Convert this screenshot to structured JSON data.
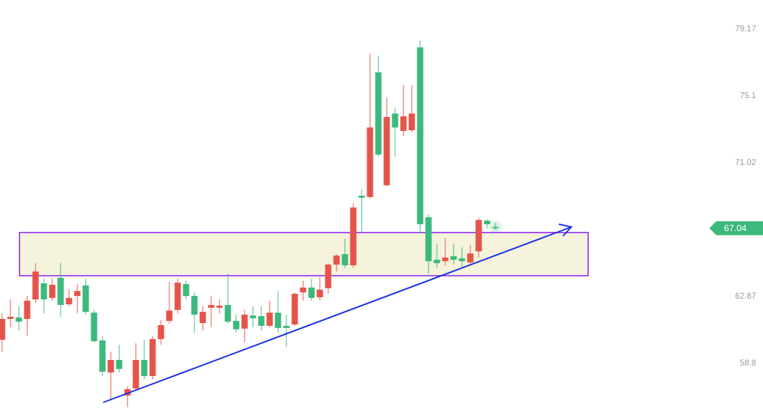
{
  "chart_data": {
    "type": "candlestick",
    "up_color": "#e5544a",
    "down_color": "#3cb97c",
    "grid": false,
    "ylim": [
      56.08,
      80.95
    ],
    "yticks": [
      79.17,
      75.1,
      71.02,
      62.87,
      58.8
    ],
    "last_price": 67.04,
    "last_price_color": "#3cb97c",
    "open": [
      60.24,
      61.51,
      61.6,
      61.51,
      62.7,
      63.68,
      62.79,
      64.02,
      62.4,
      62.91,
      63.55,
      61.89,
      60.2,
      58.24,
      59.01,
      56.84,
      57.27,
      59.01,
      58.03,
      60.28,
      61.39,
      62.06,
      63.63,
      62.91,
      61.26,
      62.19,
      62.19,
      62.36,
      61.39,
      60.92,
      61.72,
      61.68,
      61.09,
      61.89,
      61.09,
      61.17,
      63.13,
      63.42,
      62.83,
      63.38,
      64.82,
      65.46,
      64.78,
      69.02,
      68.94,
      76.54,
      69.66,
      74.03,
      72.97,
      73.01,
      78.06,
      67.71,
      65.12,
      65.03,
      65.33,
      65.2,
      64.95,
      65.63,
      67.5,
      67.11
    ],
    "high": [
      61.85,
      62.7,
      62.28,
      62.91,
      64.91,
      63.97,
      63.97,
      64.95,
      63.34,
      63.63,
      63.97,
      62.06,
      60.45,
      59.52,
      59.94,
      57.4,
      60.03,
      60.24,
      60.45,
      61.43,
      63.76,
      63.97,
      63.85,
      63.13,
      62.28,
      62.91,
      62.7,
      64.27,
      61.77,
      62.06,
      62.28,
      62.28,
      62.62,
      63.21,
      61.77,
      63.13,
      63.85,
      63.97,
      64.06,
      64.91,
      65.46,
      66.39,
      68.56,
      69.41,
      77.68,
      77.55,
      75.01,
      74.37,
      75.77,
      75.77,
      78.49,
      67.88,
      66.1,
      66.44,
      66.1,
      65.88,
      66.01,
      67.67,
      67.58,
      67.37
    ],
    "low": [
      59.52,
      61.0,
      60.79,
      60.49,
      62.49,
      61.85,
      62.62,
      61.64,
      62.28,
      61.85,
      61.77,
      60.07,
      58.03,
      56.55,
      58.24,
      56.12,
      57.18,
      57.82,
      57.82,
      59.94,
      61.22,
      61.85,
      62.7,
      60.66,
      60.79,
      61.0,
      61.85,
      61.22,
      60.66,
      60.07,
      61.0,
      60.79,
      61.0,
      60.66,
      59.82,
      61.09,
      62.62,
      62.62,
      62.62,
      63.04,
      64.4,
      64.61,
      64.61,
      66.82,
      68.85,
      71.4,
      69.58,
      71.4,
      72.67,
      72.89,
      66.73,
      64.27,
      64.61,
      64.74,
      64.82,
      64.61,
      64.82,
      65.25,
      67.03,
      66.94
    ],
    "close": [
      61.51,
      61.64,
      61.34,
      62.62,
      64.4,
      62.7,
      63.59,
      62.36,
      62.79,
      63.21,
      61.94,
      60.15,
      58.29,
      59.01,
      58.46,
      57.23,
      59.01,
      58.03,
      60.28,
      61.13,
      62.02,
      63.72,
      62.91,
      61.77,
      61.94,
      62.36,
      62.32,
      61.34,
      60.88,
      61.77,
      61.55,
      61.09,
      61.89,
      60.96,
      60.96,
      63.04,
      63.42,
      62.79,
      63.29,
      64.82,
      65.37,
      64.78,
      68.3,
      68.9,
      73.18,
      71.53,
      73.82,
      73.18,
      73.86,
      74.03,
      67.28,
      65.03,
      64.91,
      65.25,
      65.12,
      65.03,
      65.5,
      67.54,
      67.28,
      67.04
    ]
  }
}
